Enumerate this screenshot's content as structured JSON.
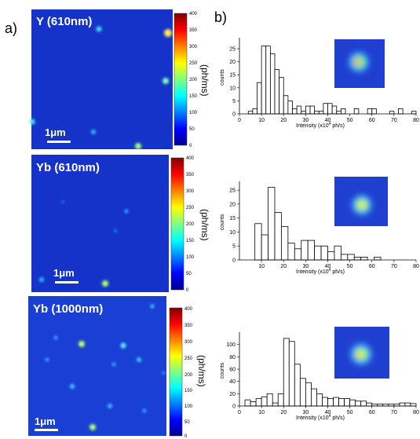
{
  "panel_labels": {
    "a": "a)",
    "b": "b)"
  },
  "colormap": [
    "#00008f",
    "#0000ff",
    "#0080ff",
    "#00ffff",
    "#80ff80",
    "#ffff00",
    "#ff8000",
    "#ff0000",
    "#800000"
  ],
  "image_panels": [
    {
      "title": "Y (610nm)",
      "scale_bar_label": "1μm",
      "colorbar_label": "(ph/ms)",
      "colorbar_ticks": [
        "400",
        "350",
        "300",
        "250",
        "200",
        "150",
        "100",
        "50",
        "0"
      ]
    },
    {
      "title": "Yb (610nm)",
      "scale_bar_label": "1μm",
      "colorbar_label": "(ph/ms)",
      "colorbar_ticks": [
        "400",
        "350",
        "300",
        "250",
        "200",
        "150",
        "100",
        "50",
        "0"
      ]
    },
    {
      "title": "Yb (1000nm)",
      "scale_bar_label": "1μm",
      "colorbar_label": "(ph/ms)",
      "colorbar_ticks": [
        "400",
        "350",
        "300",
        "250",
        "200",
        "150",
        "100",
        "50",
        "0"
      ]
    }
  ],
  "chart_data": [
    {
      "type": "bar",
      "xlabel": "Intensity (x10",
      "xlabel_sup": "4",
      "xlabel_tail": " ph/s)",
      "ylabel": "counts",
      "xlim": [
        0,
        80
      ],
      "ylim": [
        0,
        28
      ],
      "x_ticks": [
        0,
        10,
        20,
        30,
        40,
        50,
        60,
        70,
        80
      ],
      "y_ticks": [
        0,
        5,
        10,
        15,
        20,
        25
      ],
      "bin_width": 2,
      "bin_starts": [
        4,
        6,
        8,
        10,
        12,
        14,
        16,
        18,
        20,
        22,
        24,
        26,
        28,
        30,
        32,
        34,
        36,
        38,
        40,
        42,
        44,
        46,
        48,
        50,
        52,
        54,
        56,
        58,
        60,
        62,
        64,
        66,
        68,
        70,
        72,
        74,
        76,
        78
      ],
      "values": [
        1,
        2,
        12,
        26,
        26,
        23,
        17,
        14,
        7,
        5,
        2,
        3,
        1,
        3,
        3,
        1,
        1,
        4,
        4,
        3,
        1,
        2,
        0,
        0,
        2,
        0,
        0,
        2,
        2,
        0,
        0,
        0,
        1,
        0,
        2,
        0,
        0,
        1
      ]
    },
    {
      "type": "bar",
      "xlabel": "Intensity (x10",
      "xlabel_sup": "4",
      "xlabel_tail": " ph/s)",
      "ylabel": "counts",
      "xlim": [
        0,
        80
      ],
      "ylim": [
        0,
        27
      ],
      "x_ticks": [
        10,
        20,
        30,
        40,
        50,
        60,
        70,
        80
      ],
      "y_ticks": [
        0,
        5,
        10,
        15,
        20,
        25
      ],
      "bin_width": 3,
      "bin_starts": [
        7,
        10,
        13,
        16,
        19,
        22,
        25,
        28,
        31,
        34,
        37,
        40,
        43,
        46,
        49,
        52,
        55,
        58,
        61
      ],
      "values": [
        13,
        9,
        26,
        17,
        12,
        6,
        4,
        7,
        7,
        5,
        5,
        3,
        5,
        2,
        2,
        1,
        1,
        0,
        1
      ]
    },
    {
      "type": "bar",
      "xlabel": "Intensity (x10",
      "xlabel_sup": "4",
      "xlabel_tail": " ph/s)",
      "ylabel": "counts",
      "xlim": [
        0,
        80
      ],
      "ylim": [
        0,
        115
      ],
      "x_ticks": [
        0,
        10,
        20,
        30,
        40,
        50,
        60,
        70,
        80
      ],
      "y_ticks": [
        0,
        20,
        40,
        60,
        80,
        100
      ],
      "bin_width": 2.5,
      "bin_starts": [
        2.5,
        5,
        7.5,
        10,
        12.5,
        15,
        17.5,
        20,
        22.5,
        25,
        27.5,
        30,
        32.5,
        35,
        37.5,
        40,
        42.5,
        45,
        47.5,
        50,
        52.5,
        55,
        57.5,
        60,
        62.5,
        65,
        67.5,
        70,
        72.5,
        75,
        77.5
      ],
      "values": [
        10,
        7,
        12,
        15,
        20,
        5,
        20,
        110,
        105,
        68,
        45,
        38,
        28,
        20,
        14,
        12,
        14,
        12,
        12,
        10,
        8,
        8,
        5,
        3,
        3,
        3,
        3,
        3,
        5,
        5,
        4
      ]
    }
  ]
}
